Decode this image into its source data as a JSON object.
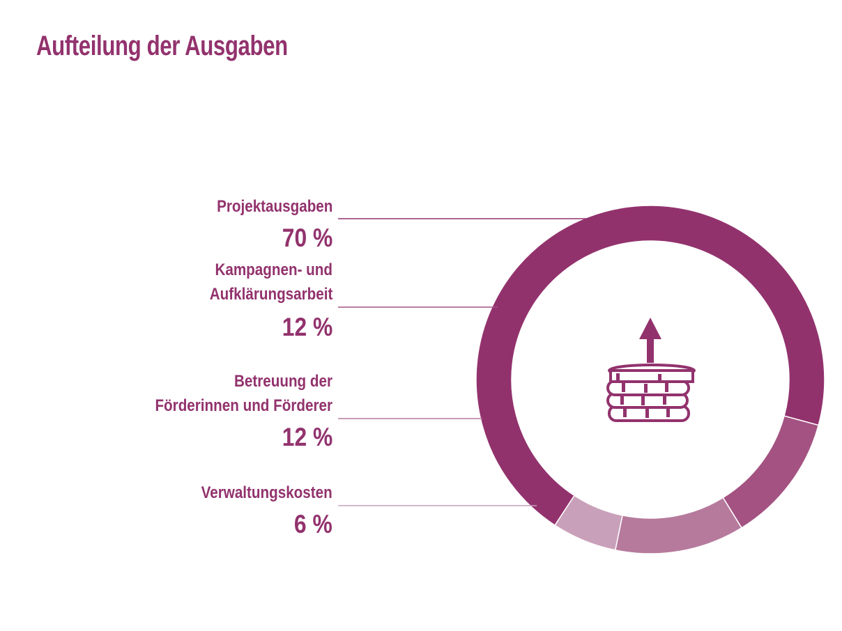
{
  "title": "Aufteilung der Ausgaben",
  "chart_data": {
    "type": "pie",
    "variant": "donut",
    "title": "Aufteilung der Ausgaben",
    "categories": [
      "Projektausgaben",
      "Kampagnen- und Aufklärungsarbeit",
      "Betreuung der Förderinnen und Förderer",
      "Verwaltungskosten"
    ],
    "values": [
      70,
      12,
      12,
      6
    ],
    "unit": "%",
    "slices": [
      {
        "label_lines": [
          "Projektausgaben"
        ],
        "value": 70,
        "value_label": "70 %",
        "color": "#92326d"
      },
      {
        "label_lines": [
          "Kampagnen- und",
          "Aufklärungsarbeit"
        ],
        "value": 12,
        "value_label": "12 %",
        "color": "#a35282"
      },
      {
        "label_lines": [
          "Betreuung der",
          "Förderinnen und Förderer"
        ],
        "value": 12,
        "value_label": "12 %",
        "color": "#b67a9d"
      },
      {
        "label_lines": [
          "Verwaltungskosten"
        ],
        "value": 6,
        "value_label": "6 %",
        "color": "#c9a0b9"
      }
    ],
    "center_icon": "coins-arrow-up-icon",
    "legend_placement": "left"
  }
}
